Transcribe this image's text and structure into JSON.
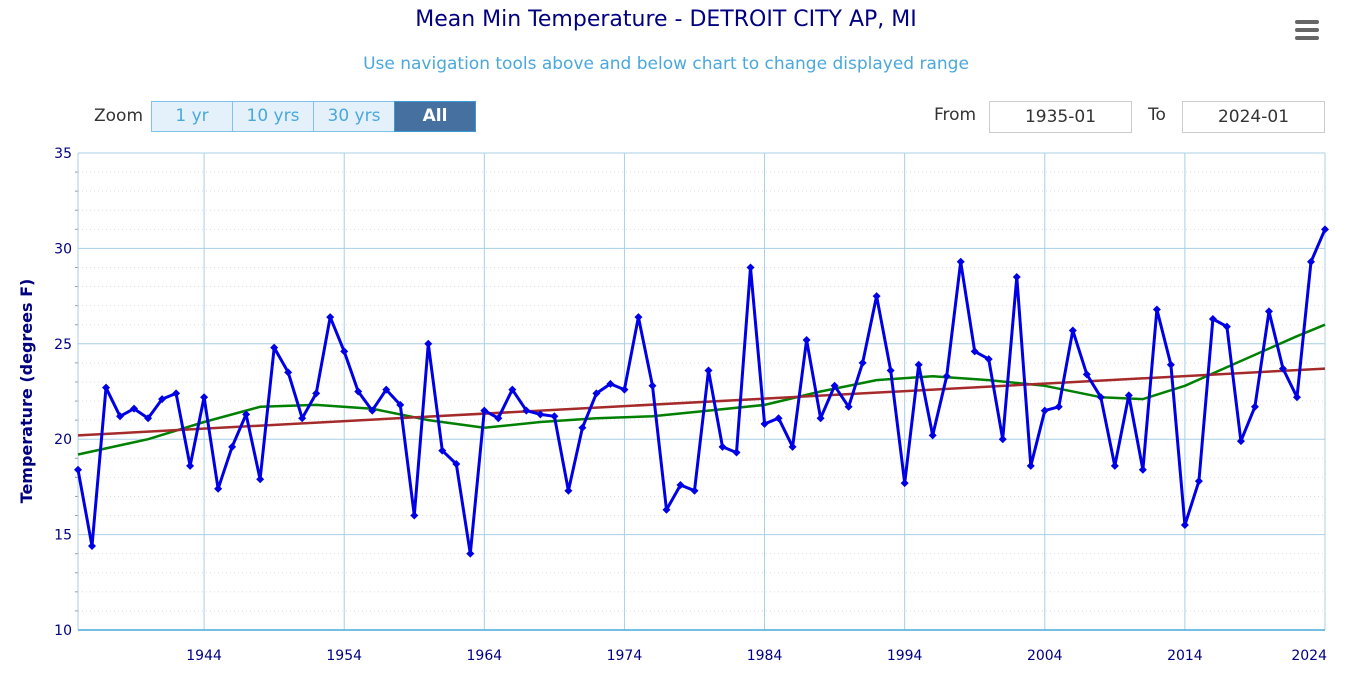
{
  "chart_data": {
    "type": "line",
    "title": "Mean Min Temperature - DETROIT CITY AP, MI",
    "subtitle": "Use navigation tools above and below chart to change displayed range",
    "ylabel": "Temperature (degrees F)",
    "xlim": [
      1935,
      2024
    ],
    "ylim": [
      10,
      35
    ],
    "yticks": [
      10,
      15,
      20,
      25,
      30,
      35
    ],
    "xticks": [
      1944,
      1954,
      1964,
      1974,
      1984,
      1994,
      2004,
      2014,
      2024
    ],
    "grid": true,
    "series": [
      {
        "color": "#0000e6",
        "markers": "diamond",
        "x": [
          1935,
          1936,
          1937,
          1938,
          1939,
          1940,
          1941,
          1942,
          1943,
          1944,
          1945,
          1946,
          1947,
          1948,
          1949,
          1950,
          1951,
          1952,
          1953,
          1954,
          1955,
          1956,
          1957,
          1958,
          1959,
          1960,
          1961,
          1962,
          1963,
          1964,
          1965,
          1966,
          1967,
          1968,
          1969,
          1970,
          1971,
          1972,
          1973,
          1974,
          1975,
          1976,
          1977,
          1978,
          1979,
          1980,
          1981,
          1982,
          1983,
          1984,
          1985,
          1986,
          1987,
          1988,
          1989,
          1990,
          1991,
          1992,
          1993,
          1994,
          1995,
          1996,
          1997,
          1998,
          1999,
          2000,
          2001,
          2002,
          2003,
          2004,
          2005,
          2006,
          2007,
          2008,
          2009,
          2010,
          2011,
          2012,
          2013,
          2014,
          2015,
          2016,
          2017,
          2018,
          2019,
          2020,
          2021,
          2022,
          2023,
          2024
        ],
        "values": [
          18.4,
          14.4,
          22.7,
          21.2,
          21.6,
          21.1,
          22.1,
          22.4,
          18.6,
          22.2,
          17.4,
          19.6,
          21.3,
          17.9,
          24.8,
          23.5,
          21.1,
          22.4,
          26.4,
          24.6,
          22.5,
          21.5,
          22.6,
          21.8,
          16.0,
          25.0,
          19.4,
          18.7,
          14.0,
          21.5,
          21.1,
          22.6,
          21.5,
          21.3,
          21.2,
          17.3,
          20.6,
          22.4,
          22.9,
          22.6,
          26.4,
          22.8,
          16.3,
          17.6,
          17.3,
          23.6,
          19.6,
          19.3,
          29.0,
          20.8,
          21.1,
          19.6,
          25.2,
          21.1,
          22.8,
          21.7,
          24.0,
          27.5,
          23.6,
          17.7,
          23.9,
          20.2,
          23.3,
          29.3,
          24.6,
          24.2,
          20.0,
          28.5,
          18.6,
          21.5,
          21.7,
          25.7,
          23.4,
          22.2,
          18.6,
          22.3,
          18.4,
          26.8,
          23.9,
          15.5,
          17.8,
          26.3,
          25.9,
          19.9,
          21.7,
          26.7,
          23.7,
          22.2,
          29.3,
          31.0
        ]
      },
      {
        "color": "#a52a2a",
        "kind": "linear-trend",
        "x": [
          1935,
          2024
        ],
        "values": [
          20.2,
          23.7
        ]
      },
      {
        "color": "#008000",
        "kind": "smoothed",
        "x": [
          1935,
          1940,
          1944,
          1948,
          1952,
          1956,
          1960,
          1964,
          1968,
          1972,
          1976,
          1980,
          1984,
          1988,
          1992,
          1996,
          2000,
          2004,
          2008,
          2011,
          2014,
          2018,
          2022,
          2024
        ],
        "values": [
          19.2,
          20.0,
          20.9,
          21.7,
          21.8,
          21.6,
          21.0,
          20.6,
          20.9,
          21.1,
          21.2,
          21.5,
          21.8,
          22.5,
          23.1,
          23.3,
          23.1,
          22.8,
          22.2,
          22.1,
          22.8,
          24.1,
          25.4,
          26.0
        ]
      }
    ]
  },
  "toolbar": {
    "menu_icon": "hamburger-menu-icon",
    "zoom_label": "Zoom",
    "zoom_buttons": [
      "1 yr",
      "10 yrs",
      "30 yrs",
      "All"
    ],
    "active_zoom": "All",
    "from_label": "From",
    "from_value": "1935-01",
    "to_label": "To",
    "to_value": "2024-01"
  }
}
